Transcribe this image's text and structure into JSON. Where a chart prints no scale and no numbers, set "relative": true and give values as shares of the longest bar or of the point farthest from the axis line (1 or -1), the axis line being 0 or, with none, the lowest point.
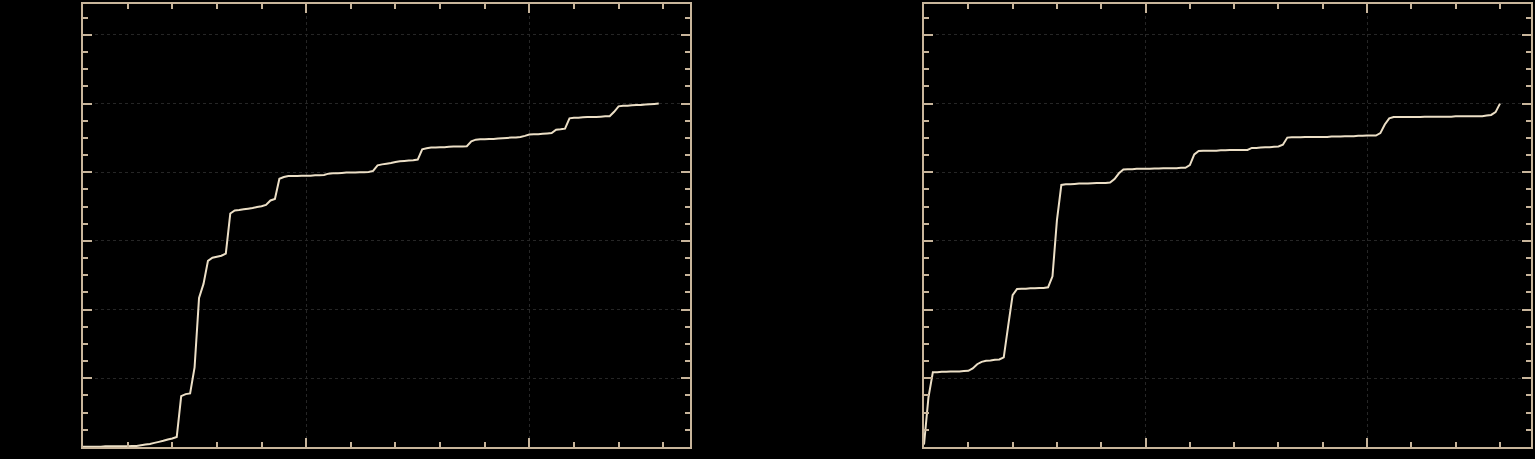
{
  "chart_data": [
    {
      "type": "line",
      "relative": true,
      "grid": true,
      "categories": [
        null,
        null,
        null,
        null,
        null,
        null,
        null,
        null,
        null,
        null,
        null,
        null,
        null,
        null,
        null,
        null,
        null,
        null,
        null,
        null,
        null,
        null,
        null,
        null,
        null,
        null,
        null,
        null,
        null,
        null,
        null,
        null,
        null,
        null,
        null,
        null,
        null,
        null,
        null,
        null,
        null,
        null,
        null,
        null,
        null,
        null,
        null,
        null,
        null,
        null,
        null,
        null,
        null,
        null,
        null,
        null,
        null,
        null,
        null,
        null,
        null,
        null,
        null,
        null,
        null,
        null,
        null,
        null,
        null,
        null,
        null,
        null,
        null,
        null,
        null,
        null,
        null,
        null,
        null,
        null,
        null,
        null,
        null,
        null,
        null,
        null,
        null,
        null,
        null,
        null,
        null,
        null,
        null,
        null,
        null,
        null,
        null,
        null,
        null,
        null,
        null,
        null,
        null,
        null,
        null,
        null,
        null,
        null,
        null,
        null,
        null,
        null,
        null,
        null,
        null,
        null,
        null,
        null,
        null,
        null,
        null,
        null,
        null,
        null,
        null,
        null,
        null,
        null,
        null,
        null,
        null,
        null,
        null,
        null,
        null,
        null,
        null
      ],
      "series": [
        {
          "color": "#ecdfc6",
          "values": [
            0.001,
            0.001,
            0.001,
            0.001,
            0.001,
            0.002,
            0.002,
            0.002,
            0.002,
            0.002,
            0.002,
            0.003,
            0.003,
            0.005,
            0.007,
            0.009,
            0.012,
            0.015,
            0.018,
            0.022,
            0.025,
            0.029,
            0.148,
            0.154,
            0.156,
            0.232,
            0.434,
            0.475,
            0.542,
            0.551,
            0.554,
            0.557,
            0.563,
            0.68,
            0.689,
            0.69,
            0.692,
            0.694,
            0.696,
            0.699,
            0.701,
            0.705,
            0.718,
            0.722,
            0.781,
            0.786,
            0.789,
            0.789,
            0.789,
            0.79,
            0.79,
            0.79,
            0.791,
            0.791,
            0.792,
            0.796,
            0.797,
            0.797,
            0.798,
            0.799,
            0.799,
            0.799,
            0.8,
            0.8,
            0.801,
            0.804,
            0.82,
            0.823,
            0.825,
            0.827,
            0.83,
            0.832,
            0.833,
            0.834,
            0.835,
            0.837,
            0.867,
            0.87,
            0.872,
            0.872,
            0.873,
            0.873,
            0.874,
            0.875,
            0.875,
            0.875,
            0.876,
            0.89,
            0.895,
            0.896,
            0.896,
            0.897,
            0.897,
            0.898,
            0.899,
            0.9,
            0.901,
            0.901,
            0.903,
            0.906,
            0.91,
            0.911,
            0.911,
            0.912,
            0.913,
            0.914,
            0.924,
            0.925,
            0.927,
            0.957,
            0.959,
            0.959,
            0.96,
            0.961,
            0.961,
            0.961,
            0.962,
            0.963,
            0.963,
            0.976,
            0.992,
            0.994,
            0.994,
            0.995,
            0.996,
            0.996,
            0.997,
            0.998,
            0.999,
            1.0,
            null,
            null,
            null,
            null,
            null,
            null,
            null
          ]
        }
      ]
    },
    {
      "type": "line",
      "relative": true,
      "grid": true,
      "categories": [
        null,
        null,
        null,
        null,
        null,
        null,
        null,
        null,
        null,
        null,
        null,
        null,
        null,
        null,
        null,
        null,
        null,
        null,
        null,
        null,
        null,
        null,
        null,
        null,
        null,
        null,
        null,
        null,
        null,
        null,
        null,
        null,
        null,
        null,
        null,
        null,
        null,
        null,
        null,
        null,
        null,
        null,
        null,
        null,
        null,
        null,
        null,
        null,
        null,
        null,
        null,
        null,
        null,
        null,
        null,
        null,
        null,
        null,
        null,
        null,
        null,
        null,
        null,
        null,
        null,
        null,
        null,
        null,
        null,
        null,
        null,
        null,
        null,
        null,
        null,
        null,
        null,
        null,
        null,
        null,
        null,
        null,
        null,
        null,
        null,
        null,
        null,
        null,
        null,
        null,
        null,
        null,
        null,
        null,
        null,
        null,
        null,
        null,
        null,
        null,
        null,
        null,
        null,
        null,
        null,
        null,
        null,
        null,
        null,
        null,
        null,
        null,
        null,
        null,
        null,
        null,
        null,
        null,
        null,
        null,
        null,
        null,
        null,
        null,
        null,
        null,
        null,
        null,
        null,
        null,
        null,
        null,
        null,
        null,
        null,
        null,
        null,
        null
      ],
      "series": [
        {
          "color": "#ecdfc6",
          "values": [
            0.007,
            0.144,
            0.218,
            0.218,
            0.219,
            0.219,
            0.22,
            0.22,
            0.22,
            0.221,
            0.222,
            0.229,
            0.241,
            0.248,
            0.251,
            0.252,
            0.254,
            0.255,
            0.261,
            0.353,
            0.442,
            0.46,
            0.461,
            0.461,
            0.462,
            0.462,
            0.463,
            0.463,
            0.465,
            0.497,
            0.66,
            0.763,
            0.765,
            0.765,
            0.766,
            0.767,
            0.767,
            0.767,
            0.768,
            0.769,
            0.769,
            0.769,
            0.77,
            0.78,
            0.797,
            0.808,
            0.809,
            0.809,
            0.81,
            0.81,
            0.81,
            0.81,
            0.811,
            0.811,
            0.812,
            0.812,
            0.812,
            0.812,
            0.813,
            0.813,
            0.821,
            0.852,
            0.862,
            0.863,
            0.863,
            0.863,
            0.863,
            0.864,
            0.864,
            0.865,
            0.865,
            0.865,
            0.865,
            0.865,
            0.871,
            0.871,
            0.872,
            0.873,
            0.873,
            0.874,
            0.875,
            0.88,
            0.901,
            0.902,
            0.902,
            0.902,
            0.903,
            0.903,
            0.903,
            0.903,
            0.903,
            0.903,
            0.904,
            0.904,
            0.904,
            0.905,
            0.905,
            0.905,
            0.906,
            0.906,
            0.907,
            0.907,
            0.907,
            0.914,
            0.939,
            0.957,
            0.961,
            0.961,
            0.961,
            0.961,
            0.961,
            0.961,
            0.961,
            0.962,
            0.962,
            0.962,
            0.962,
            0.962,
            0.962,
            0.962,
            0.963,
            0.963,
            0.963,
            0.963,
            0.963,
            0.963,
            0.963,
            0.965,
            0.967,
            0.975,
            1.0,
            null,
            null,
            null,
            null,
            null,
            null,
            null
          ]
        }
      ]
    }
  ]
}
